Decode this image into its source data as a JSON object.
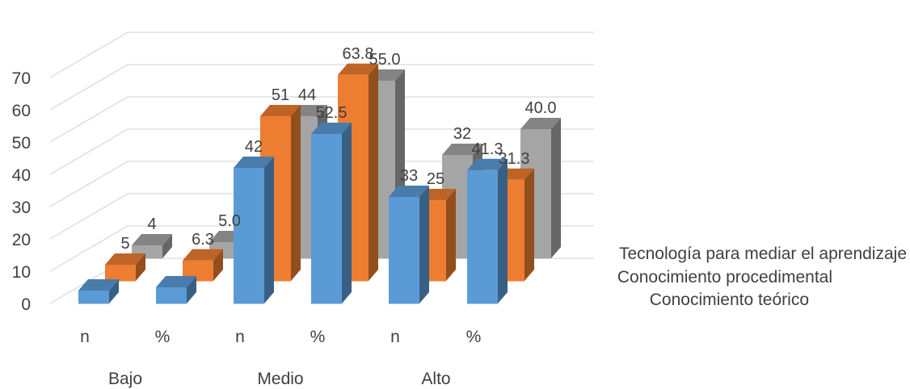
{
  "chart_data": {
    "type": "bar",
    "style": "3d-clustered-column",
    "groups": [
      "Bajo",
      "Medio",
      "Alto"
    ],
    "categories": [
      "n",
      "%",
      "n",
      "%",
      "n",
      "%"
    ],
    "ylim": [
      0,
      70
    ],
    "yticks": [
      "0",
      "10",
      "20",
      "30",
      "40",
      "50",
      "60",
      "70"
    ],
    "grid": true,
    "series": [
      {
        "name": "Conocimiento teórico",
        "color": "#5b9bd5",
        "values": [
          4,
          5,
          42,
          52.5,
          33,
          41.3
        ],
        "labels": [
          "",
          "",
          "42",
          "52.5",
          "33",
          "41.3"
        ]
      },
      {
        "name": "Conocimiento procedimental",
        "color": "#ed7d31",
        "values": [
          5,
          6.3,
          51,
          63.8,
          25,
          31.3
        ],
        "labels": [
          "5",
          "6.3",
          "51",
          "63.8",
          "25",
          "31.3"
        ]
      },
      {
        "name": "Tecnología para mediar el aprendizaje",
        "color": "#a5a5a5",
        "values": [
          4,
          5.0,
          44,
          55.0,
          32,
          40.0
        ],
        "labels": [
          "4",
          "5.0",
          "44",
          "55.0",
          "32",
          "40.0"
        ]
      }
    ]
  }
}
